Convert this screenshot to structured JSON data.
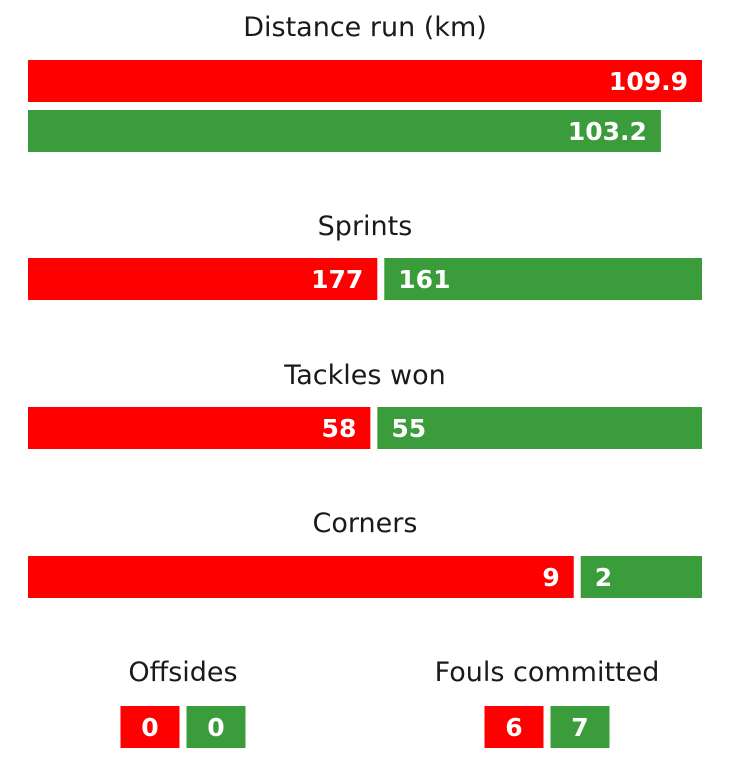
{
  "colors": {
    "team_a": "#ff0000",
    "team_b": "#3a9c3a"
  },
  "chart_data": [
    {
      "type": "bar",
      "title": "Distance run (km)",
      "orientation": "stacked-rows",
      "series": [
        {
          "values": [
            109.9
          ]
        },
        {
          "values": [
            103.2
          ]
        }
      ],
      "xlim": [
        0,
        109.9
      ]
    },
    {
      "type": "bar",
      "title": "Sprints",
      "orientation": "split",
      "series": [
        {
          "values": [
            177
          ]
        },
        {
          "values": [
            161
          ]
        }
      ]
    },
    {
      "type": "bar",
      "title": "Tackles won",
      "orientation": "split",
      "series": [
        {
          "values": [
            58
          ]
        },
        {
          "values": [
            55
          ]
        }
      ]
    },
    {
      "type": "bar",
      "title": "Corners",
      "orientation": "split",
      "series": [
        {
          "values": [
            9
          ]
        },
        {
          "values": [
            2
          ]
        }
      ]
    },
    {
      "type": "table",
      "title": "Offsides",
      "values": [
        0,
        0
      ]
    },
    {
      "type": "table",
      "title": "Fouls committed",
      "values": [
        6,
        7
      ]
    }
  ]
}
